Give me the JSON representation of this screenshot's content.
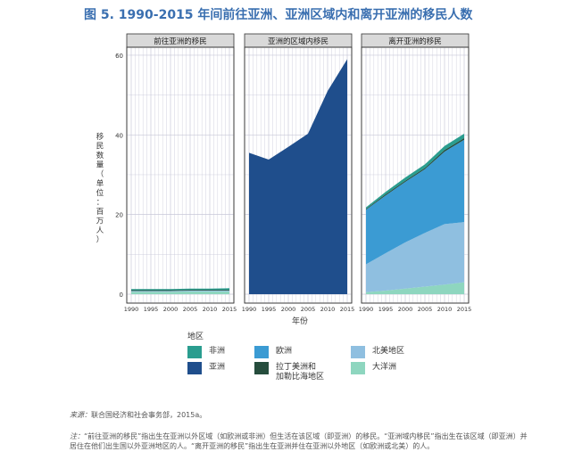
{
  "title": "图 5. 1990-2015 年间前往亚洲、亚洲区域内和离开亚洲的移民人数",
  "colors": {
    "africa": "#2a9d8f",
    "asia": "#1f4e8c",
    "europe": "#3b9bd3",
    "latin_america": "#264d3d",
    "north_america": "#8fbfe0",
    "oceania": "#8ed6bf",
    "panel_strip": "#d9d9d9",
    "grid": "#c8c8d8"
  },
  "chart_data": {
    "type": "area",
    "ylabel_chars": [
      "移",
      "民",
      "数",
      "量",
      "（",
      "单",
      "位",
      "：",
      "百",
      "万",
      "人",
      "）"
    ],
    "xlabel": "年份",
    "x": [
      1990,
      1995,
      2000,
      2005,
      2010,
      2015
    ],
    "x_ticks": [
      "1990",
      "1995",
      "2000",
      "2005",
      "2010",
      "2015"
    ],
    "y_ticks": [
      "0",
      "20",
      "40",
      "60"
    ],
    "ylim": [
      0,
      62
    ],
    "legend_title": "地区",
    "legend": [
      {
        "key": "africa",
        "label": "非洲"
      },
      {
        "key": "europe",
        "label": "欧洲"
      },
      {
        "key": "north_america",
        "label": "北美地区"
      },
      {
        "key": "asia",
        "label": "亚洲"
      },
      {
        "key": "latin_america",
        "label": "拉丁美洲和\n加勒比海地区"
      },
      {
        "key": "oceania",
        "label": "大洋洲"
      }
    ],
    "panels": [
      {
        "title": "前往亚洲的移民",
        "series": [
          {
            "key": "oceania",
            "values": [
              0.6,
              0.6,
              0.6,
              0.7,
              0.7,
              0.7
            ]
          },
          {
            "key": "north_america",
            "values": [
              0.2,
              0.2,
              0.2,
              0.2,
              0.2,
              0.2
            ]
          },
          {
            "key": "latin_america",
            "values": [
              0.2,
              0.2,
              0.2,
              0.2,
              0.2,
              0.2
            ]
          },
          {
            "key": "africa",
            "values": [
              0.3,
              0.3,
              0.3,
              0.3,
              0.3,
              0.4
            ]
          }
        ]
      },
      {
        "title": "亚洲的区域内移民",
        "series": [
          {
            "key": "asia",
            "values": [
              35.5,
              33.8,
              37.0,
              40.3,
              51.0,
              59.0
            ]
          }
        ]
      },
      {
        "title": "离开亚洲的移民",
        "series": [
          {
            "key": "oceania",
            "values": [
              0.5,
              0.9,
              1.4,
              1.9,
              2.4,
              3.0
            ]
          },
          {
            "key": "north_america",
            "values": [
              7.0,
              9.4,
              11.6,
              13.5,
              15.2,
              15.1
            ]
          },
          {
            "key": "europe",
            "values": [
              13.7,
              14.5,
              15.2,
              16.0,
              18.2,
              20.7
            ]
          },
          {
            "key": "latin_america",
            "values": [
              0.2,
              0.3,
              0.3,
              0.3,
              0.4,
              0.4
            ]
          },
          {
            "key": "africa",
            "values": [
              0.4,
              0.6,
              0.8,
              0.9,
              1.0,
              1.1
            ]
          }
        ]
      }
    ]
  },
  "source": {
    "tag": "来源：",
    "text": "联合国经济和社会事务部，2015a。"
  },
  "note": {
    "tag": "注：",
    "text": "“前往亚洲的移民”指出生在亚洲以外区域（如欧洲或非洲）但生活在该区域（即亚洲）的移民。“亚洲域内移民”指出生在该区域（即亚洲）并居住在他们出生国以外亚洲地区的人。“离开亚洲的移民”指出生在亚洲并住在亚洲以外地区（如欧洲或北美）的人。"
  }
}
